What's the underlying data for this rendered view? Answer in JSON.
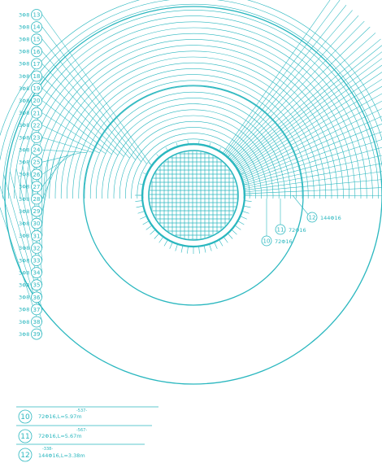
{
  "labels": {
    "tag_prefix": "3Φ8",
    "left_marks": [
      "13",
      "14",
      "15",
      "16",
      "17",
      "18",
      "19",
      "20",
      "21",
      "22",
      "23",
      "24",
      "25",
      "26",
      "27",
      "28",
      "29",
      "30",
      "31",
      "32",
      "33",
      "34",
      "35",
      "36",
      "37",
      "38",
      "39"
    ]
  },
  "callouts": [
    {
      "num": "12",
      "text": "144Φ16"
    },
    {
      "num": "11",
      "text": "72Φ16"
    },
    {
      "num": "10",
      "text": "72Φ16"
    }
  ],
  "table": {
    "rows": [
      {
        "num": "10",
        "note": "-537-",
        "text": "72Φ16,L=5.97m"
      },
      {
        "num": "11",
        "note": "-567-",
        "text": "72Φ16,L=5.67m"
      },
      {
        "num": "12",
        "note": "-338-",
        "text": "144Φ16,L=3.38m"
      }
    ]
  },
  "colors": {
    "line": "#2ab7bf"
  }
}
